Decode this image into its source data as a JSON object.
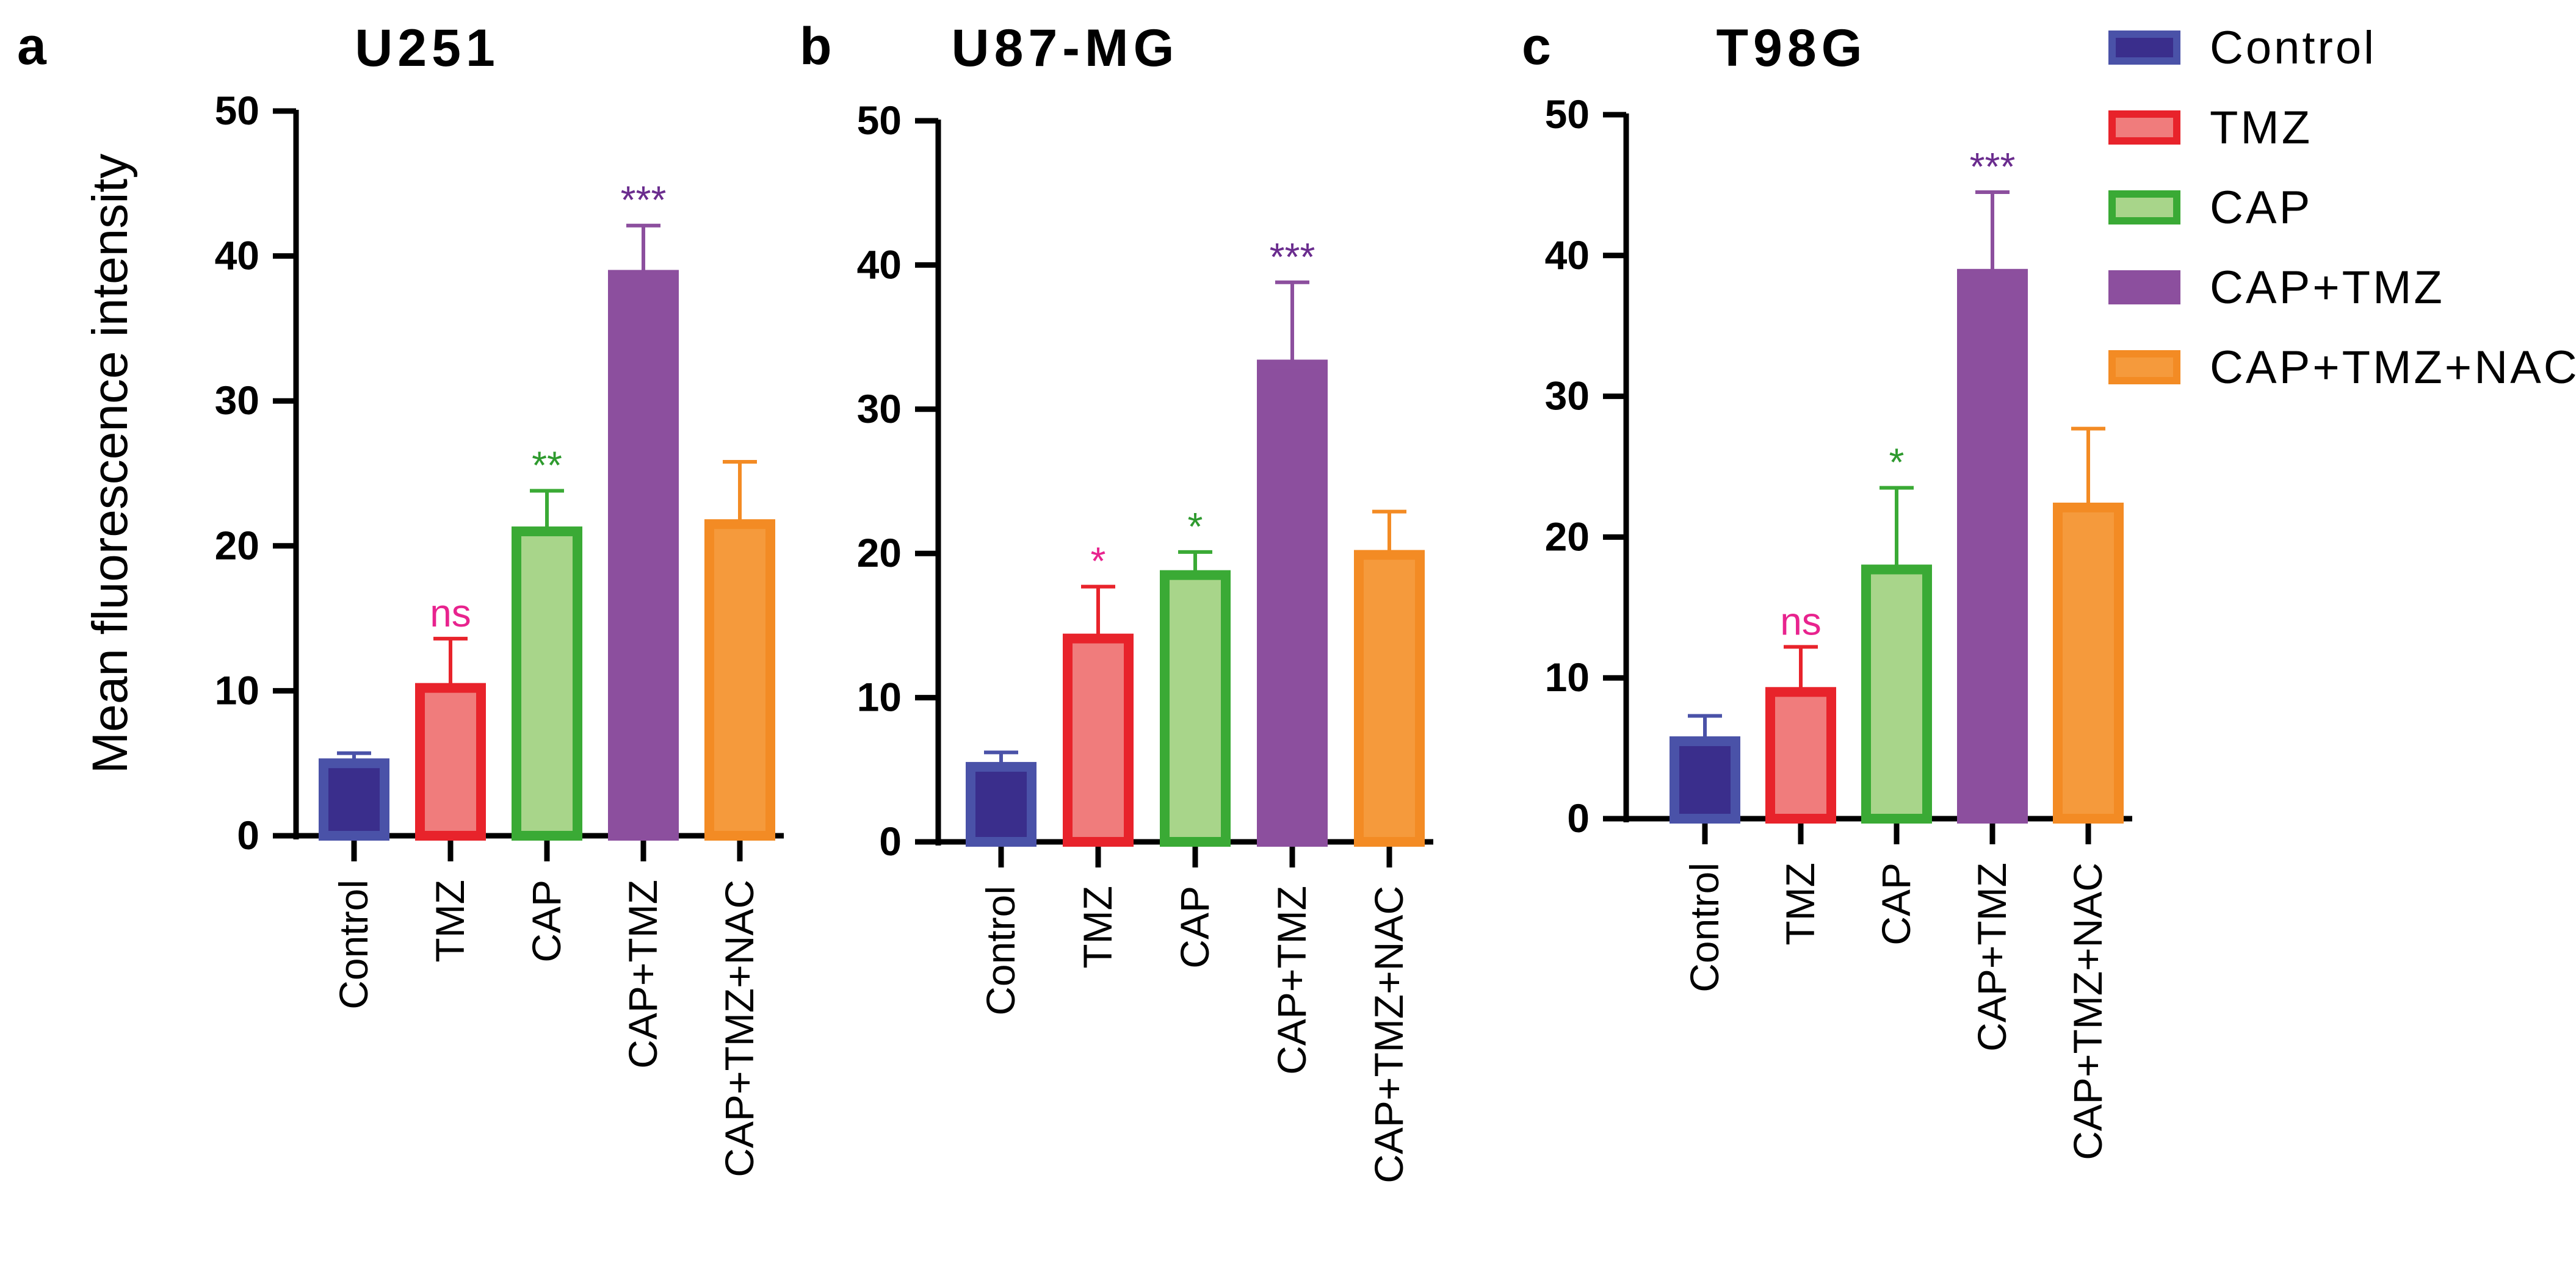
{
  "ylabel": "Mean fluorescence intensity",
  "legend": {
    "items": [
      {
        "label": "Control",
        "fill": "#3a2e8c",
        "stroke": "#4a52a8"
      },
      {
        "label": "TMZ",
        "fill": "#f07c7c",
        "stroke": "#e8232b"
      },
      {
        "label": "CAP",
        "fill": "#a8d58a",
        "stroke": "#3aaa35"
      },
      {
        "label": "CAP+TMZ",
        "fill": "#8c4f9e",
        "stroke": "#8c4f9e"
      },
      {
        "label": "CAP+TMZ+NAC",
        "fill": "#f59a3c",
        "stroke": "#f38b24"
      }
    ]
  },
  "sig_colors": {
    "pink": "#e8238e",
    "green": "#2e9a2e",
    "purple": "#6a2c8e"
  },
  "chart_data": [
    {
      "type": "bar",
      "panel": "a",
      "title": "U251",
      "categories": [
        "Control",
        "TMZ",
        "CAP",
        "CAP+TMZ",
        "CAP+TMZ+NAC"
      ],
      "values": [
        5.0,
        10.2,
        21.0,
        38.7,
        21.5
      ],
      "errors": [
        0.7,
        3.4,
        2.8,
        3.4,
        4.3
      ],
      "significance": [
        "",
        "ns",
        "**",
        "***",
        ""
      ],
      "significance_colors": [
        "",
        "pink",
        "green",
        "purple",
        ""
      ],
      "ylim": [
        0,
        50
      ],
      "yticks": [
        0,
        10,
        20,
        30,
        40,
        50
      ]
    },
    {
      "type": "bar",
      "panel": "b",
      "title": "U87-MG",
      "categories": [
        "Control",
        "TMZ",
        "CAP",
        "CAP+TMZ",
        "CAP+TMZ+NAC"
      ],
      "values": [
        5.2,
        14.1,
        18.5,
        33.1,
        19.9
      ],
      "errors": [
        1.0,
        3.6,
        1.6,
        5.7,
        3.0
      ],
      "significance": [
        "",
        "*",
        "*",
        "***",
        ""
      ],
      "significance_colors": [
        "",
        "pink",
        "green",
        "purple",
        ""
      ],
      "ylim": [
        0,
        50
      ],
      "yticks": [
        0,
        10,
        20,
        30,
        40,
        50
      ]
    },
    {
      "type": "bar",
      "panel": "c",
      "title": "T98G",
      "categories": [
        "Control",
        "TMZ",
        "CAP",
        "CAP+TMZ",
        "CAP+TMZ+NAC"
      ],
      "values": [
        5.5,
        9.0,
        17.7,
        38.7,
        22.1
      ],
      "errors": [
        1.8,
        3.2,
        5.8,
        5.8,
        5.6
      ],
      "significance": [
        "",
        "ns",
        "*",
        "***",
        ""
      ],
      "significance_colors": [
        "",
        "pink",
        "green",
        "purple",
        ""
      ],
      "ylim": [
        0,
        50
      ],
      "yticks": [
        0,
        10,
        20,
        30,
        40,
        50
      ]
    }
  ]
}
